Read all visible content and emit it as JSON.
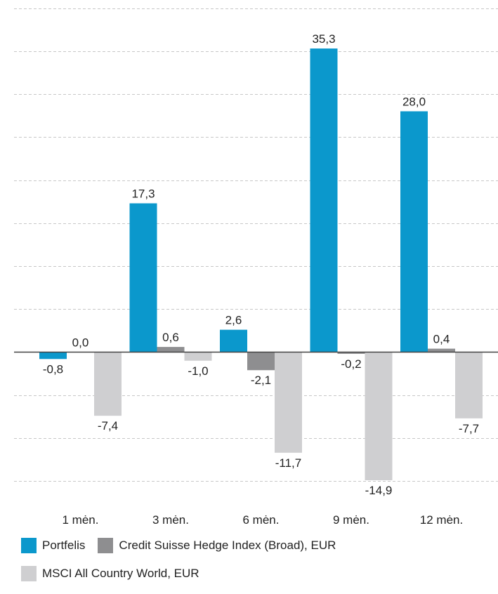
{
  "colors": {
    "portfelis": "#0b98cc",
    "credit_suisse": "#8e8e90",
    "msci": "#cfcfd1",
    "grid": "#c7c7c7",
    "axis": "#444444",
    "text": "#222222"
  },
  "chart_data": {
    "type": "bar",
    "categories": [
      "1 mėn.",
      "3 mėn.",
      "6 mėn.",
      "9 mėn.",
      "12 mėn."
    ],
    "series": [
      {
        "name": "Portfelis",
        "values": [
          -0.8,
          17.3,
          2.6,
          35.3,
          28.0
        ],
        "labels": [
          "-0,8",
          "17,3",
          "2,6",
          "35,3",
          "28,0"
        ]
      },
      {
        "name": "Credit Suisse Hedge Index (Broad), EUR",
        "values": [
          0.0,
          0.6,
          -2.1,
          -0.2,
          0.4
        ],
        "labels": [
          "0,0",
          "0,6",
          "-2,1",
          "-0,2",
          "0,4"
        ]
      },
      {
        "name": "MSCI All Country World, EUR",
        "values": [
          -7.4,
          -1.0,
          -11.7,
          -14.9,
          -7.7
        ],
        "labels": [
          "-7,4",
          "-1,0",
          "-11,7",
          "-14,9",
          "-7,7"
        ]
      }
    ],
    "ylim": [
      -15,
      40
    ],
    "grid": true,
    "grid_step": 5,
    "legend_position": "bottom"
  }
}
